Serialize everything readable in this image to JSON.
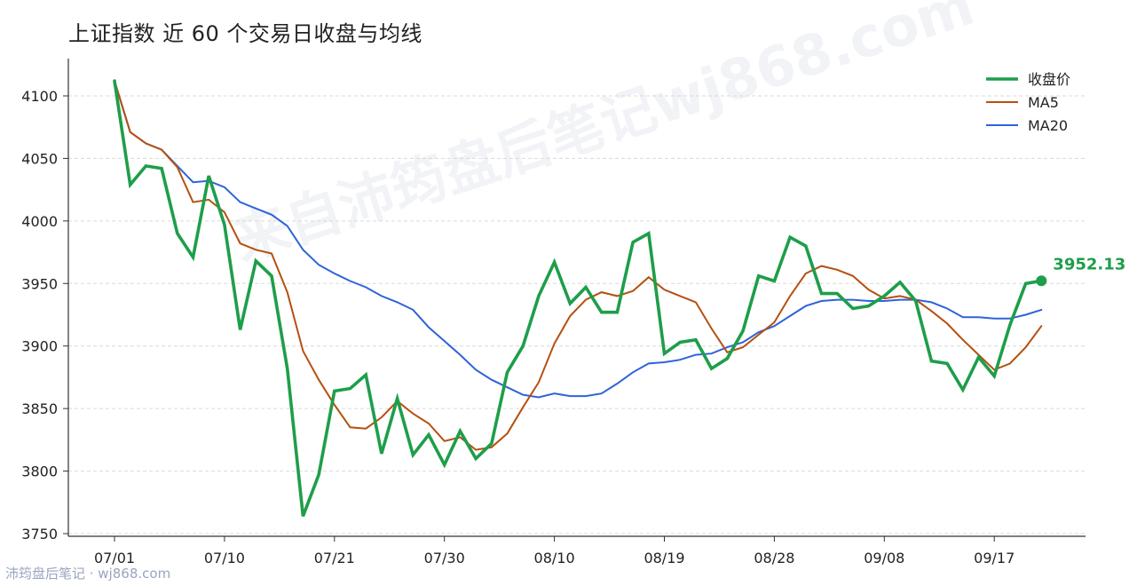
{
  "chart_data": {
    "type": "line",
    "title": "上证指数 近 60 个交易日收盘与均线",
    "x_ticks": [
      "07/01",
      "07/10",
      "07/21",
      "07/30",
      "08/10",
      "08/19",
      "08/28",
      "09/08",
      "09/17"
    ],
    "x_tick_index": [
      0,
      7,
      14,
      21,
      28,
      35,
      42,
      49,
      56
    ],
    "ylim": [
      3745,
      4130
    ],
    "yticks": [
      3750,
      3800,
      3850,
      3900,
      3950,
      4000,
      4050,
      4100
    ],
    "grid": true,
    "legend_position": "top-right",
    "series": [
      {
        "name": "收盘价",
        "color": "#1e9e4a",
        "values": [
          4112,
          4029,
          4044,
          4042,
          3990,
          3971,
          4036,
          3997,
          3913,
          3968,
          3956,
          3882,
          3764,
          3797,
          3864,
          3866,
          3877,
          3814,
          3858,
          3813,
          3829,
          3805,
          3832,
          3810,
          3822,
          3879,
          3900,
          3940,
          3967,
          3934,
          3947,
          3927,
          3927,
          3983,
          3990,
          3894,
          3903,
          3905,
          3882,
          3890,
          3912,
          3956,
          3952,
          3987,
          3980,
          3942,
          3942,
          3930,
          3932,
          3940,
          3951,
          3936,
          3888,
          3886,
          3865,
          3891,
          3876,
          3917,
          3950,
          3952.13
        ]
      },
      {
        "name": "MA5",
        "color": "#b5500f",
        "values": [
          4112,
          4071,
          4062,
          4057,
          4043,
          4015,
          4017,
          4007,
          3982,
          3977,
          3974,
          3943,
          3896,
          3873,
          3853,
          3835,
          3834,
          3843,
          3856,
          3846,
          3838,
          3824,
          3827,
          3817,
          3819,
          3830,
          3851,
          3871,
          3902,
          3924,
          3937,
          3943,
          3940,
          3944,
          3955,
          3945,
          3940,
          3935,
          3914,
          3895,
          3899,
          3909,
          3919,
          3940,
          3958,
          3964,
          3961,
          3956,
          3945,
          3938,
          3940,
          3937,
          3928,
          3918,
          3905,
          3893,
          3881,
          3886,
          3899,
          3916
        ]
      },
      {
        "name": "MA20",
        "color": "#2f63d8",
        "values": [
          4112,
          4071,
          4062,
          4057,
          4044,
          4031,
          4032,
          4027,
          4015,
          4010,
          4005,
          3996,
          3977,
          3965,
          3958,
          3952,
          3947,
          3940,
          3935,
          3929,
          3915,
          3904,
          3893,
          3881,
          3873,
          3867,
          3861,
          3859,
          3862,
          3860,
          3860,
          3862,
          3870,
          3879,
          3886,
          3887,
          3889,
          3893,
          3894,
          3899,
          3903,
          3911,
          3916,
          3924,
          3932,
          3936,
          3937,
          3937,
          3936,
          3936,
          3937,
          3937,
          3935,
          3930,
          3923,
          3923,
          3922,
          3922,
          3925,
          3929
        ]
      }
    ],
    "last_value_label": "3952.13"
  },
  "watermark_text": "沛筠盘后笔记 · wj868.com",
  "background_watermark": "来自沛筠盘后笔记wj868.com"
}
